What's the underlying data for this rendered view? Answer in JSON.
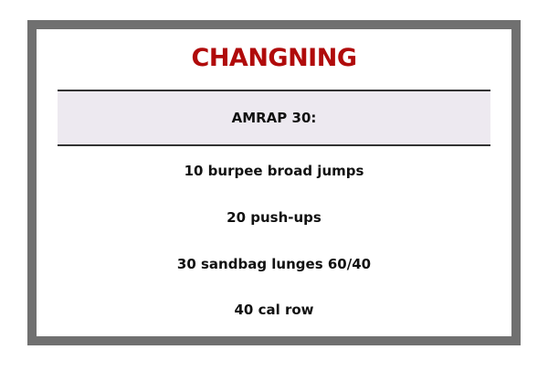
{
  "title": "CHANGNING",
  "workout_format": "AMRAP 30:",
  "exercises": [
    "10 burpee broad jumps",
    "20 push-ups",
    "30 sandbag lunges 60/40",
    "40 cal row"
  ],
  "colors": {
    "title": "#b00b0b",
    "frame": "#707070",
    "band_background": "#ede9f0",
    "text": "#111111"
  }
}
